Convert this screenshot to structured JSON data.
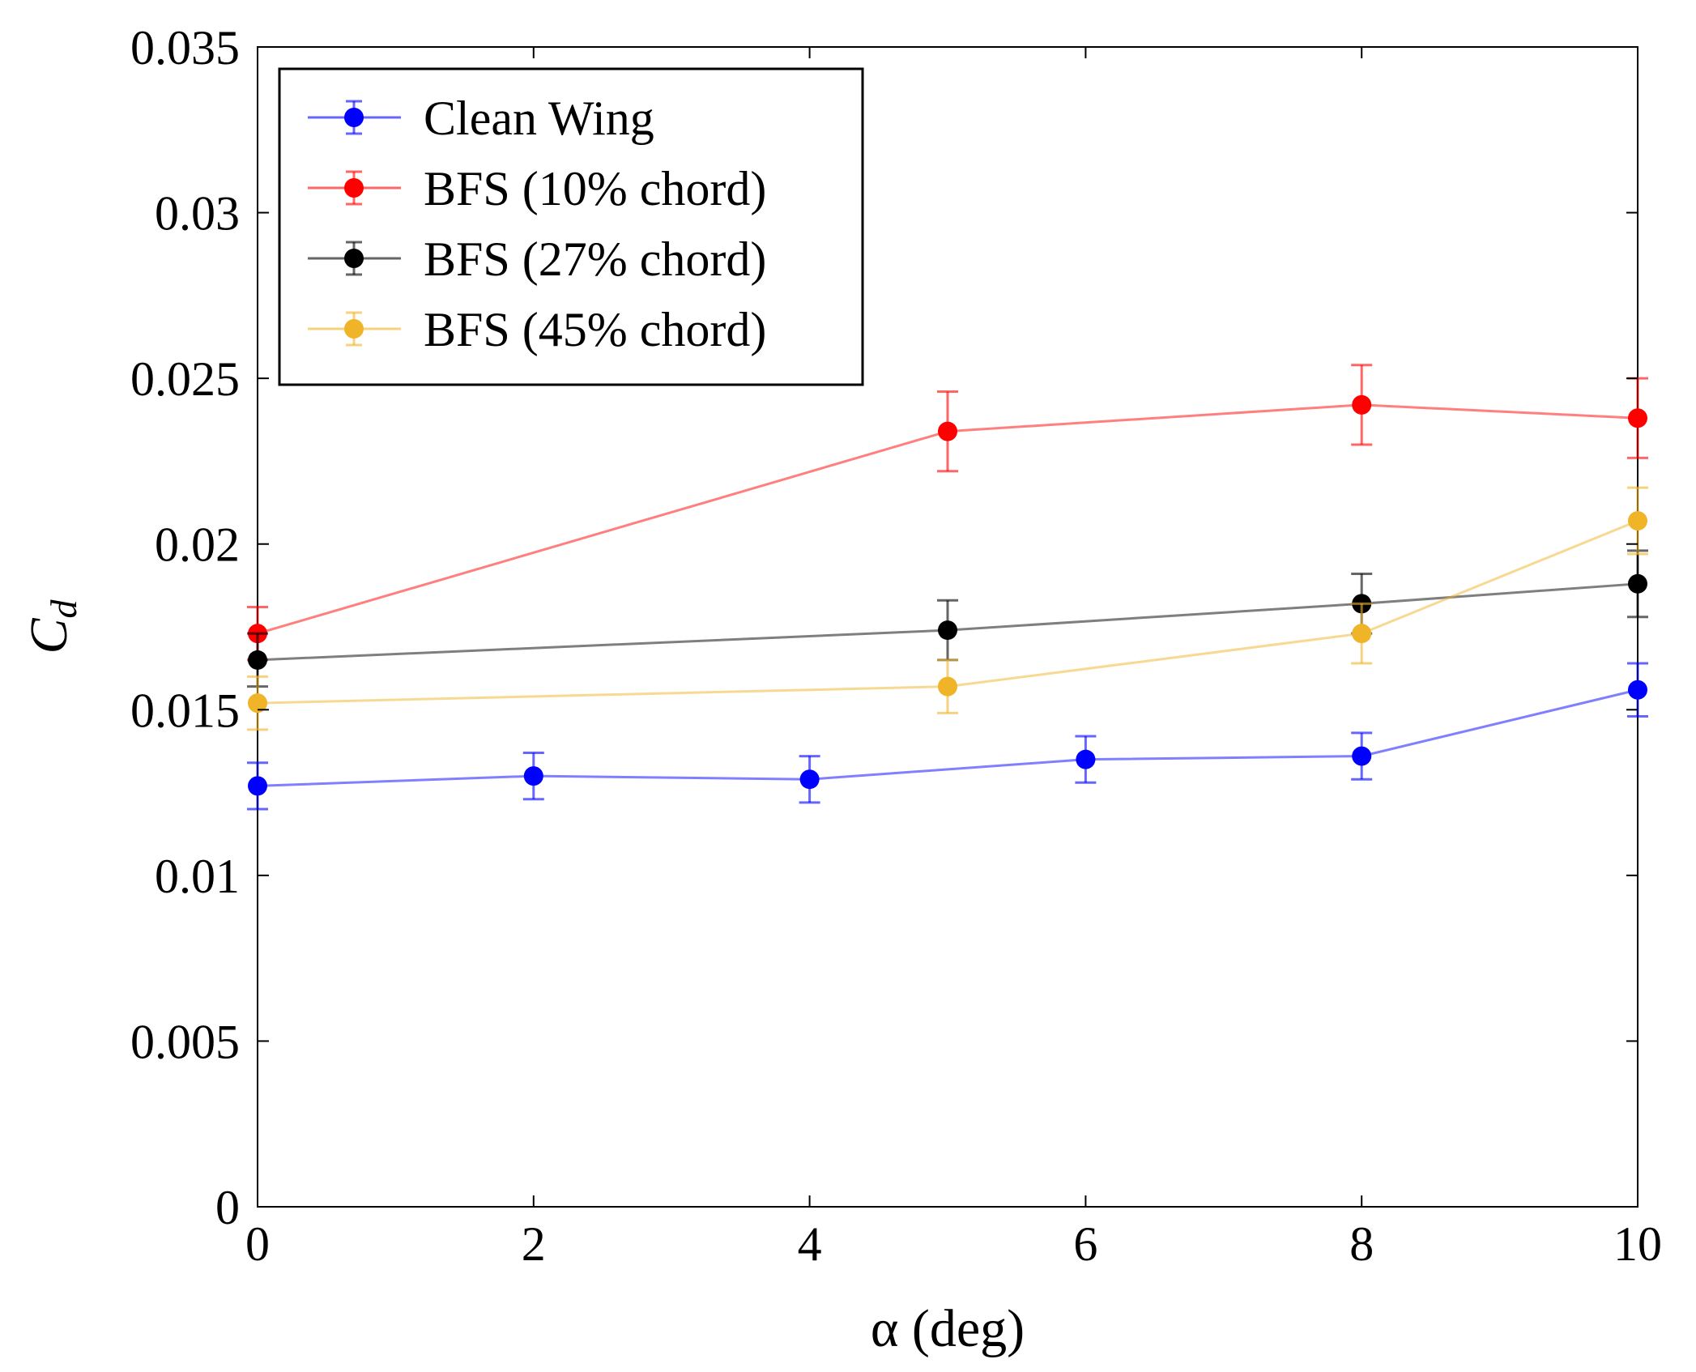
{
  "chart_data": {
    "type": "line",
    "title": "",
    "xlabel": "α (deg)",
    "ylabel_main": "C",
    "ylabel_sub": "d",
    "xlim": [
      0,
      10
    ],
    "ylim": [
      0,
      0.035
    ],
    "xticks": [
      0,
      2,
      4,
      6,
      8,
      10
    ],
    "xtick_labels": [
      "0",
      "2",
      "4",
      "6",
      "8",
      "10"
    ],
    "yticks": [
      0,
      0.005,
      0.01,
      0.015,
      0.02,
      0.025,
      0.03,
      0.035
    ],
    "ytick_labels": [
      "0",
      "0.005",
      "0.01",
      "0.015",
      "0.02",
      "0.025",
      "0.03",
      "0.035"
    ],
    "grid": false,
    "legend_position": "top-left",
    "error_bars": true,
    "series": [
      {
        "name": "Clean Wing",
        "color": "#0000ff",
        "points": [
          {
            "x": 0,
            "y": 0.0127,
            "err": 0.0007
          },
          {
            "x": 2,
            "y": 0.013,
            "err": 0.0007
          },
          {
            "x": 4,
            "y": 0.0129,
            "err": 0.0007
          },
          {
            "x": 6,
            "y": 0.0135,
            "err": 0.0007
          },
          {
            "x": 8,
            "y": 0.0136,
            "err": 0.0007
          },
          {
            "x": 10,
            "y": 0.0156,
            "err": 0.0008
          }
        ]
      },
      {
        "name": "BFS (10% chord)",
        "color": "#ff0000",
        "points": [
          {
            "x": 0,
            "y": 0.0173,
            "err": 0.0008
          },
          {
            "x": 5,
            "y": 0.0234,
            "err": 0.0012
          },
          {
            "x": 8,
            "y": 0.0242,
            "err": 0.0012
          },
          {
            "x": 10,
            "y": 0.0238,
            "err": 0.0012
          }
        ]
      },
      {
        "name": "BFS (27% chord)",
        "color": "#000000",
        "points": [
          {
            "x": 0,
            "y": 0.0165,
            "err": 0.0008
          },
          {
            "x": 5,
            "y": 0.0174,
            "err": 0.0009
          },
          {
            "x": 8,
            "y": 0.0182,
            "err": 0.0009
          },
          {
            "x": 10,
            "y": 0.0188,
            "err": 0.001
          }
        ]
      },
      {
        "name": "BFS (45% chord)",
        "color": "#f0b429",
        "points": [
          {
            "x": 0,
            "y": 0.0152,
            "err": 0.0008
          },
          {
            "x": 5,
            "y": 0.0157,
            "err": 0.0008
          },
          {
            "x": 8,
            "y": 0.0173,
            "err": 0.0009
          },
          {
            "x": 10,
            "y": 0.0207,
            "err": 0.001
          }
        ]
      }
    ]
  }
}
